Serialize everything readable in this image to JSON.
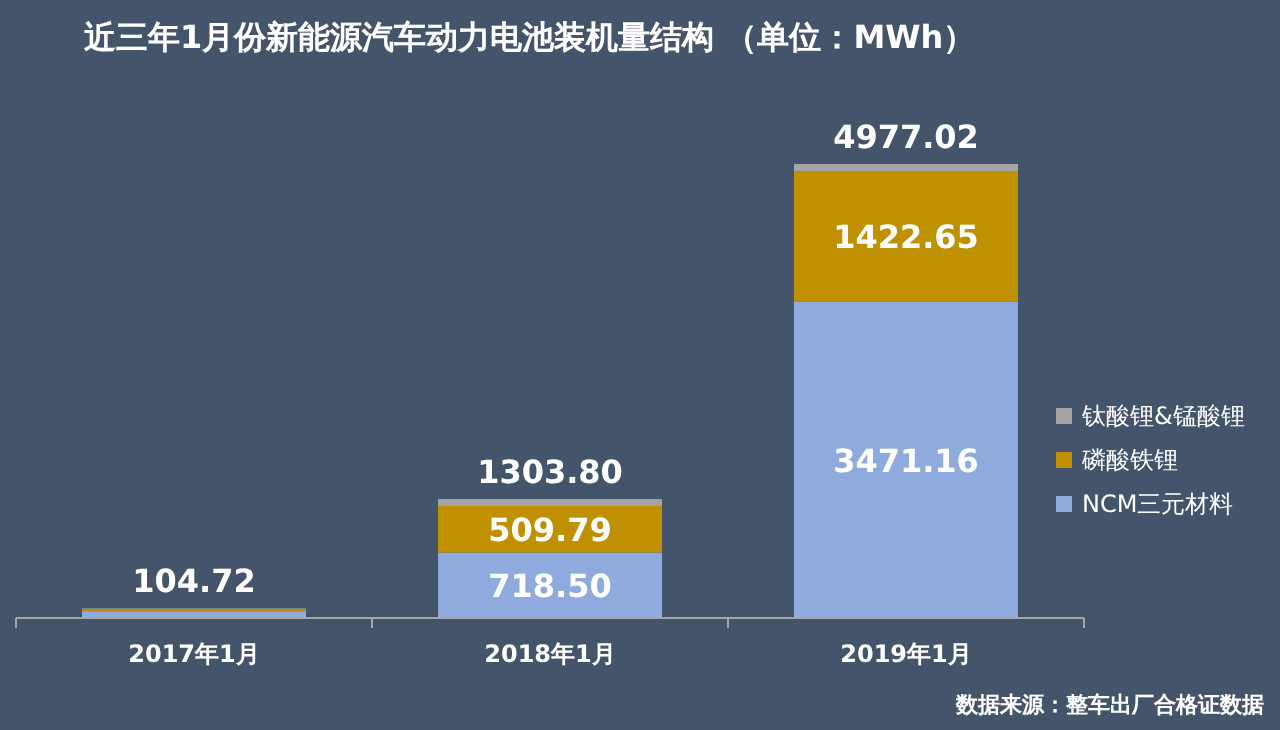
{
  "chart_data": {
    "type": "bar",
    "stacked": true,
    "title": "近三年1月份新能源汽车动力电池装机量结构 （单位：MWh）",
    "categories": [
      "2017年1月",
      "2018年1月",
      "2019年1月"
    ],
    "series": [
      {
        "name": "NCM三元材料",
        "color": "#8faadc",
        "values": [
          75,
          718.5,
          3471.16
        ],
        "value_labels": [
          null,
          "718.50",
          "3471.16"
        ]
      },
      {
        "name": "磷酸铁锂",
        "color": "#bf9000",
        "values": [
          20,
          509.79,
          1422.65
        ],
        "value_labels": [
          null,
          "509.79",
          "1422.65"
        ]
      },
      {
        "name": "钛酸锂&锰酸锂",
        "color": "#a5a5a5",
        "values": [
          9.72,
          75.51,
          83.21
        ],
        "value_labels": [
          null,
          null,
          null
        ]
      }
    ],
    "totals": [
      "104.72",
      "1303.80",
      "4977.02"
    ],
    "legend": "right",
    "annotations": [
      "数据来源：整车出厂合格证数据"
    ]
  }
}
